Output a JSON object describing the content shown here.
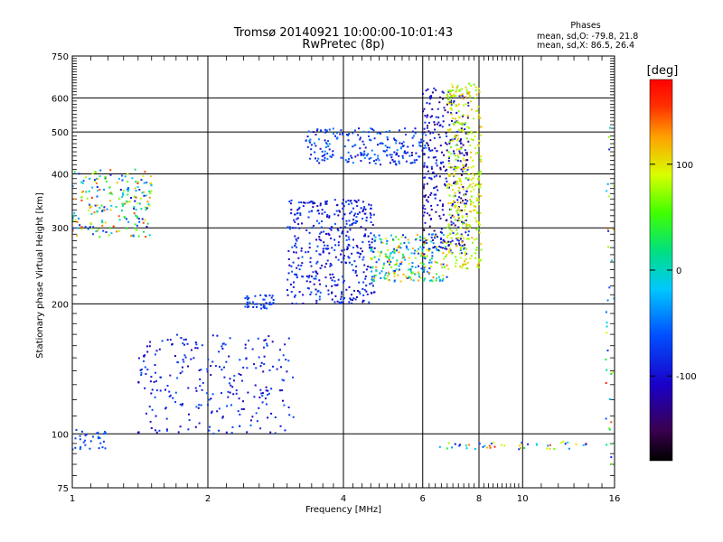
{
  "header": {
    "title_line1": "Tromsø 20140921 10:00:00-10:01:43",
    "title_line2": "RwPretec (8p)"
  },
  "phase_box": {
    "heading": "Phases",
    "line_o": "mean, sd,O: -79.8, 21.8",
    "line_x": "mean, sd,X:  86.5, 26.4"
  },
  "colorbar": {
    "unit_label": "[deg]",
    "ticks": [
      {
        "value": 100,
        "label": "100"
      },
      {
        "value": 0,
        "label": "0"
      },
      {
        "value": -100,
        "label": "-100"
      }
    ],
    "range": [
      -180,
      180
    ]
  },
  "chart_data": {
    "type": "scatter",
    "title": "Tromsø 20140921 10:00:00-10:01:43",
    "subtitle": "RwPretec (8p)",
    "xlabel": "Frequency [MHz]",
    "ylabel": "Stationary phase Virtual Height [km]",
    "xscale": "log",
    "yscale": "log",
    "xlim": [
      1,
      16
    ],
    "ylim": [
      75,
      750
    ],
    "grid": true,
    "x_ticks": [
      {
        "value": 1,
        "label": "1",
        "grid": false
      },
      {
        "value": 2,
        "label": "2",
        "grid": true
      },
      {
        "value": 4,
        "label": "4",
        "grid": true
      },
      {
        "value": 6,
        "label": "6",
        "grid": true
      },
      {
        "value": 8,
        "label": "8",
        "grid": true
      },
      {
        "value": 10,
        "label": "10",
        "grid": true
      },
      {
        "value": 16,
        "label": "16",
        "grid": false
      }
    ],
    "y_ticks": [
      {
        "value": 75,
        "label": "75",
        "grid": false
      },
      {
        "value": 100,
        "label": "100",
        "grid": true
      },
      {
        "value": 200,
        "label": "200",
        "grid": true
      },
      {
        "value": 300,
        "label": "300",
        "grid": true
      },
      {
        "value": 400,
        "label": "400",
        "grid": true
      },
      {
        "value": 500,
        "label": "500",
        "grid": true
      },
      {
        "value": 600,
        "label": "600",
        "grid": true
      },
      {
        "value": 750,
        "label": "750",
        "grid": false
      }
    ],
    "x_minor_ticks": [
      1.1,
      1.2,
      1.3,
      1.4,
      1.5,
      1.6,
      1.7,
      1.8,
      1.9,
      2.2,
      2.4,
      2.6,
      2.8,
      3,
      3.2,
      3.4,
      3.6,
      3.8,
      4.2,
      4.4,
      4.6,
      4.8,
      5,
      5.2,
      5.4,
      5.6,
      5.8,
      6.2,
      6.4,
      6.6,
      6.8,
      7,
      7.2,
      7.4,
      7.6,
      7.8,
      8.2,
      8.4,
      8.6,
      8.8,
      9,
      9.2,
      9.4,
      9.6,
      9.8,
      11,
      12,
      13,
      14,
      15
    ],
    "y_minor_ticks": [
      80,
      85,
      90,
      95,
      110,
      120,
      130,
      140,
      150,
      160,
      170,
      180,
      190,
      210,
      220,
      230,
      240,
      250,
      260,
      270,
      280,
      290,
      310,
      320,
      330,
      340,
      350,
      360,
      370,
      380,
      390,
      410,
      420,
      430,
      440,
      450,
      460,
      470,
      480,
      490,
      510,
      520,
      530,
      540,
      550,
      560,
      570,
      580,
      590,
      610,
      620,
      630,
      640,
      650,
      660,
      670,
      680,
      690,
      700,
      710,
      720,
      730,
      740
    ],
    "series": [
      {
        "f_range": [
          1.0,
          1.5
        ],
        "h_range": [
          285,
          410
        ],
        "phase": [
          -110,
          160
        ],
        "n": 210
      },
      {
        "f_range": [
          1.0,
          1.2
        ],
        "h_range": [
          92,
          103
        ],
        "phase": [
          -80,
          -55
        ],
        "n": 30
      },
      {
        "f_range": [
          1.4,
          3.1
        ],
        "h_range": [
          100,
          170
        ],
        "phase": [
          -120,
          -55
        ],
        "n": 260
      },
      {
        "f_range": [
          2.4,
          2.8
        ],
        "h_range": [
          195,
          210
        ],
        "phase": [
          -85,
          -55
        ],
        "n": 45
      },
      {
        "f_range": [
          3.0,
          4.7
        ],
        "h_range": [
          200,
          350
        ],
        "phase": [
          -125,
          -55
        ],
        "n": 420
      },
      {
        "f_range": [
          3.3,
          6.2
        ],
        "h_range": [
          420,
          510
        ],
        "phase": [
          -110,
          -40
        ],
        "n": 220
      },
      {
        "f_range": [
          4.6,
          6.8
        ],
        "h_range": [
          225,
          290
        ],
        "phase": [
          -90,
          140
        ],
        "n": 260
      },
      {
        "f_range": [
          6.0,
          7.6
        ],
        "h_range": [
          260,
          640
        ],
        "phase": [
          -150,
          -70
        ],
        "n": 330
      },
      {
        "f_range": [
          6.8,
          8.1
        ],
        "h_range": [
          240,
          650
        ],
        "phase": [
          60,
          120
        ],
        "n": 360
      },
      {
        "f_range": [
          6.4,
          14
        ],
        "h_range": [
          92,
          96
        ],
        "phase": [
          -110,
          170
        ],
        "n": 45
      },
      {
        "f_range": [
          15.3,
          16
        ],
        "h_range": [
          85,
          620
        ],
        "phase": [
          -100,
          170
        ],
        "n": 35
      }
    ]
  }
}
